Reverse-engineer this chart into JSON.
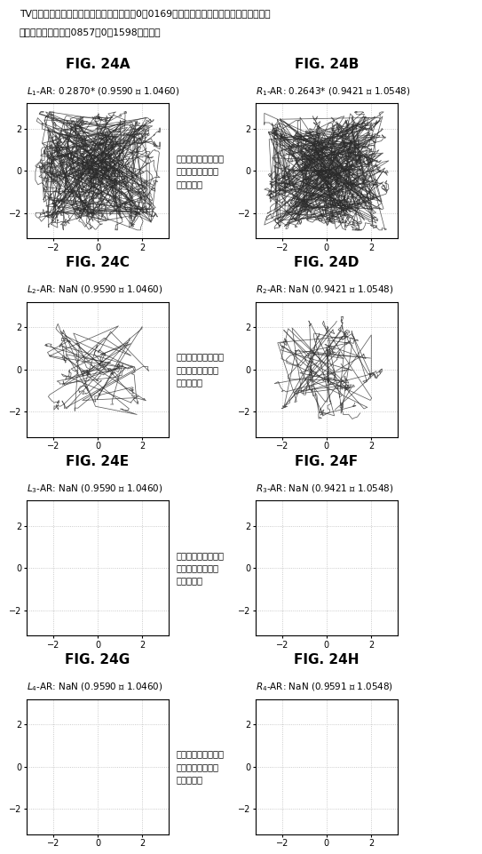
{
  "title_line1": "TVを観ている（自然な目視）正常な人は、0．0169の共同性で一緒に移動する籜を有する",
  "title_line2": "（正常範囲は、－．0857～0．1598である）",
  "panels": [
    {
      "fig_label": "FIG. 24A",
      "sub_label": "L",
      "sub_num": "1",
      "sub_suffix": "-AR: 0.2870* (0.9590 ～ 1.0460)",
      "has_traces": true,
      "has_annotation": true,
      "annotation": "どのように筆が一緒\nに移動するかに留\n意されたい",
      "trace_complexity": "high"
    },
    {
      "fig_label": "FIG. 24B",
      "sub_label": "R",
      "sub_num": "1",
      "sub_suffix": "-AR: 0.2643* (0.9421 ～ 1.0548)",
      "has_traces": true,
      "has_annotation": false,
      "annotation": "",
      "trace_complexity": "high"
    },
    {
      "fig_label": "FIG. 24C",
      "sub_label": "L",
      "sub_num": "2",
      "sub_suffix": "-AR: NaN (0.9590 ～ 1.0460)",
      "has_traces": true,
      "has_annotation": true,
      "annotation": "どのように筆が一緒\nに移動するかに留\n意されたい",
      "trace_complexity": "medium"
    },
    {
      "fig_label": "FIG. 24D",
      "sub_label": "R",
      "sub_num": "2",
      "sub_suffix": "-AR: NaN (0.9421 ～ 1.0548)",
      "has_traces": true,
      "has_annotation": false,
      "annotation": "",
      "trace_complexity": "medium"
    },
    {
      "fig_label": "FIG. 24E",
      "sub_label": "L",
      "sub_num": "3",
      "sub_suffix": "-AR: NaN (0.9590 ～ 1.0460)",
      "has_traces": false,
      "has_annotation": true,
      "annotation": "どのように筆が一緒\nに移動するかに留\n意されたい",
      "trace_complexity": "none"
    },
    {
      "fig_label": "FIG. 24F",
      "sub_label": "R",
      "sub_num": "3",
      "sub_suffix": "-AR: NaN (0.9421 ～ 1.0548)",
      "has_traces": false,
      "has_annotation": false,
      "annotation": "",
      "trace_complexity": "none"
    },
    {
      "fig_label": "FIG. 24G",
      "sub_label": "L",
      "sub_num": "4",
      "sub_suffix": "-AR: NaN (0.9590 ～ 1.0460)",
      "has_traces": false,
      "has_annotation": true,
      "annotation": "どのように筆が一緒\nに移動するかに留\n意されたい",
      "trace_complexity": "none"
    },
    {
      "fig_label": "FIG. 24H",
      "sub_label": "R",
      "sub_num": "4",
      "sub_suffix": "-AR: NaN (0.9591 ～ 1.0548)",
      "has_traces": false,
      "has_annotation": false,
      "annotation": "",
      "trace_complexity": "none"
    }
  ],
  "xlim": [
    -3.2,
    3.2
  ],
  "ylim": [
    -3.2,
    3.2
  ],
  "xticks": [
    -2,
    0,
    2
  ],
  "yticks": [
    -2,
    0,
    2
  ],
  "bg_color": "#ffffff",
  "trace_color": "#2a2a2a",
  "grid_color": "#bbbbbb"
}
